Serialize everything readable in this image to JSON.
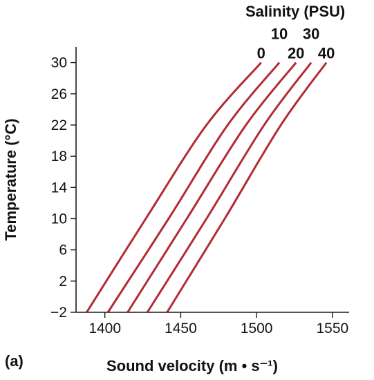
{
  "chart_data": {
    "type": "line",
    "panel_label": "(a)",
    "legend_title": "Salinity (PSU)",
    "xlabel": "Sound velocity (m • s⁻¹)",
    "ylabel": "Temperature (°C)",
    "xlim": [
      1381,
      1561
    ],
    "ylim": [
      -2,
      32
    ],
    "xticks": [
      1400,
      1450,
      1500,
      1550
    ],
    "yticks": [
      -2,
      2,
      6,
      10,
      14,
      18,
      22,
      26,
      30
    ],
    "xtick_labels": [
      "1400",
      "1450",
      "1500",
      "1550"
    ],
    "ytick_labels": [
      "−2",
      "2",
      "6",
      "10",
      "14",
      "18",
      "22",
      "26",
      "30"
    ],
    "line_color": "#b32a35",
    "series": [
      {
        "name": "0",
        "points": [
          [
            1388,
            -2
          ],
          [
            1427,
            10
          ],
          [
            1467,
            22
          ],
          [
            1503,
            30
          ]
        ]
      },
      {
        "name": "10",
        "points": [
          [
            1402,
            -2
          ],
          [
            1442,
            10
          ],
          [
            1481,
            22
          ],
          [
            1515,
            30
          ]
        ]
      },
      {
        "name": "20",
        "points": [
          [
            1415,
            -2
          ],
          [
            1454,
            10
          ],
          [
            1493,
            22
          ],
          [
            1526,
            30
          ]
        ]
      },
      {
        "name": "30",
        "points": [
          [
            1428,
            -2
          ],
          [
            1467,
            10
          ],
          [
            1505,
            22
          ],
          [
            1536,
            30
          ]
        ]
      },
      {
        "name": "40",
        "points": [
          [
            1441,
            -2
          ],
          [
            1479,
            10
          ],
          [
            1516,
            22
          ],
          [
            1546,
            30
          ]
        ]
      }
    ]
  }
}
